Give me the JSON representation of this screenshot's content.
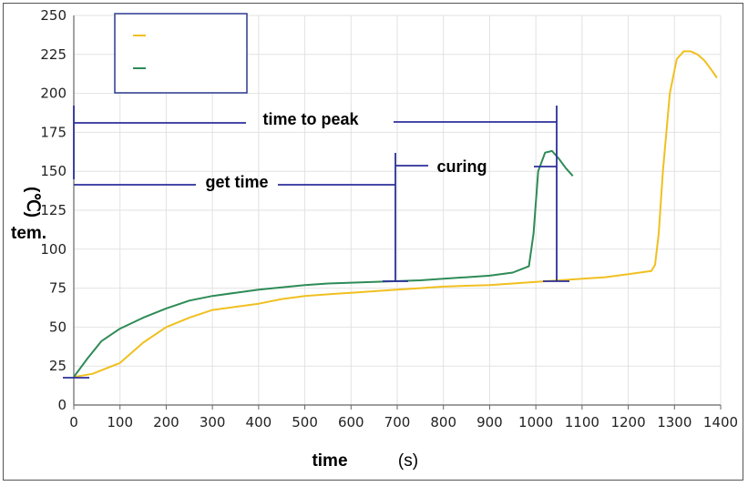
{
  "chart_data": {
    "type": "line",
    "xlabel": "time",
    "xunit": "(s)",
    "ylabel": "tem.",
    "yunit": "(℃)",
    "xlim": [
      0,
      1400
    ],
    "ylim": [
      0,
      250
    ],
    "xticks": [
      0,
      100,
      200,
      300,
      400,
      500,
      600,
      700,
      800,
      900,
      1000,
      1100,
      1200,
      1300,
      1400
    ],
    "yticks": [
      0,
      25,
      50,
      75,
      100,
      125,
      150,
      175,
      200,
      225,
      250
    ],
    "grid": true,
    "legend": "top-left",
    "series": [
      {
        "color": "#f0c020",
        "x": [
          0,
          40,
          100,
          150,
          200,
          250,
          300,
          350,
          400,
          450,
          500,
          550,
          600,
          650,
          700,
          750,
          800,
          850,
          900,
          950,
          1000,
          1050,
          1100,
          1150,
          1200,
          1250,
          1258,
          1266,
          1275,
          1290,
          1305,
          1320,
          1335,
          1350,
          1365,
          1380,
          1392
        ],
        "y": [
          18,
          20,
          27,
          40,
          50,
          56,
          61,
          63,
          65,
          68,
          70,
          71,
          72,
          73,
          74,
          75,
          76,
          76.5,
          77,
          78,
          79,
          80,
          81,
          82,
          84,
          86,
          90,
          110,
          150,
          200,
          222,
          227,
          227,
          225,
          221,
          215,
          210
        ]
      },
      {
        "color": "#2e8b57",
        "x": [
          0,
          30,
          60,
          100,
          150,
          200,
          250,
          300,
          350,
          400,
          450,
          500,
          550,
          600,
          650,
          700,
          750,
          800,
          850,
          900,
          950,
          985,
          995,
          1005,
          1020,
          1035,
          1050,
          1065,
          1080
        ],
        "y": [
          18,
          30,
          41,
          49,
          56,
          62,
          67,
          70,
          72,
          74,
          75.5,
          77,
          78,
          78.5,
          79,
          79.5,
          80,
          81,
          82,
          83,
          85,
          89,
          110,
          150,
          162,
          163,
          158,
          152,
          147
        ]
      }
    ],
    "annotations": {
      "time_to_peak": "time to peak",
      "get_time": "get time",
      "curing": "curing"
    }
  }
}
